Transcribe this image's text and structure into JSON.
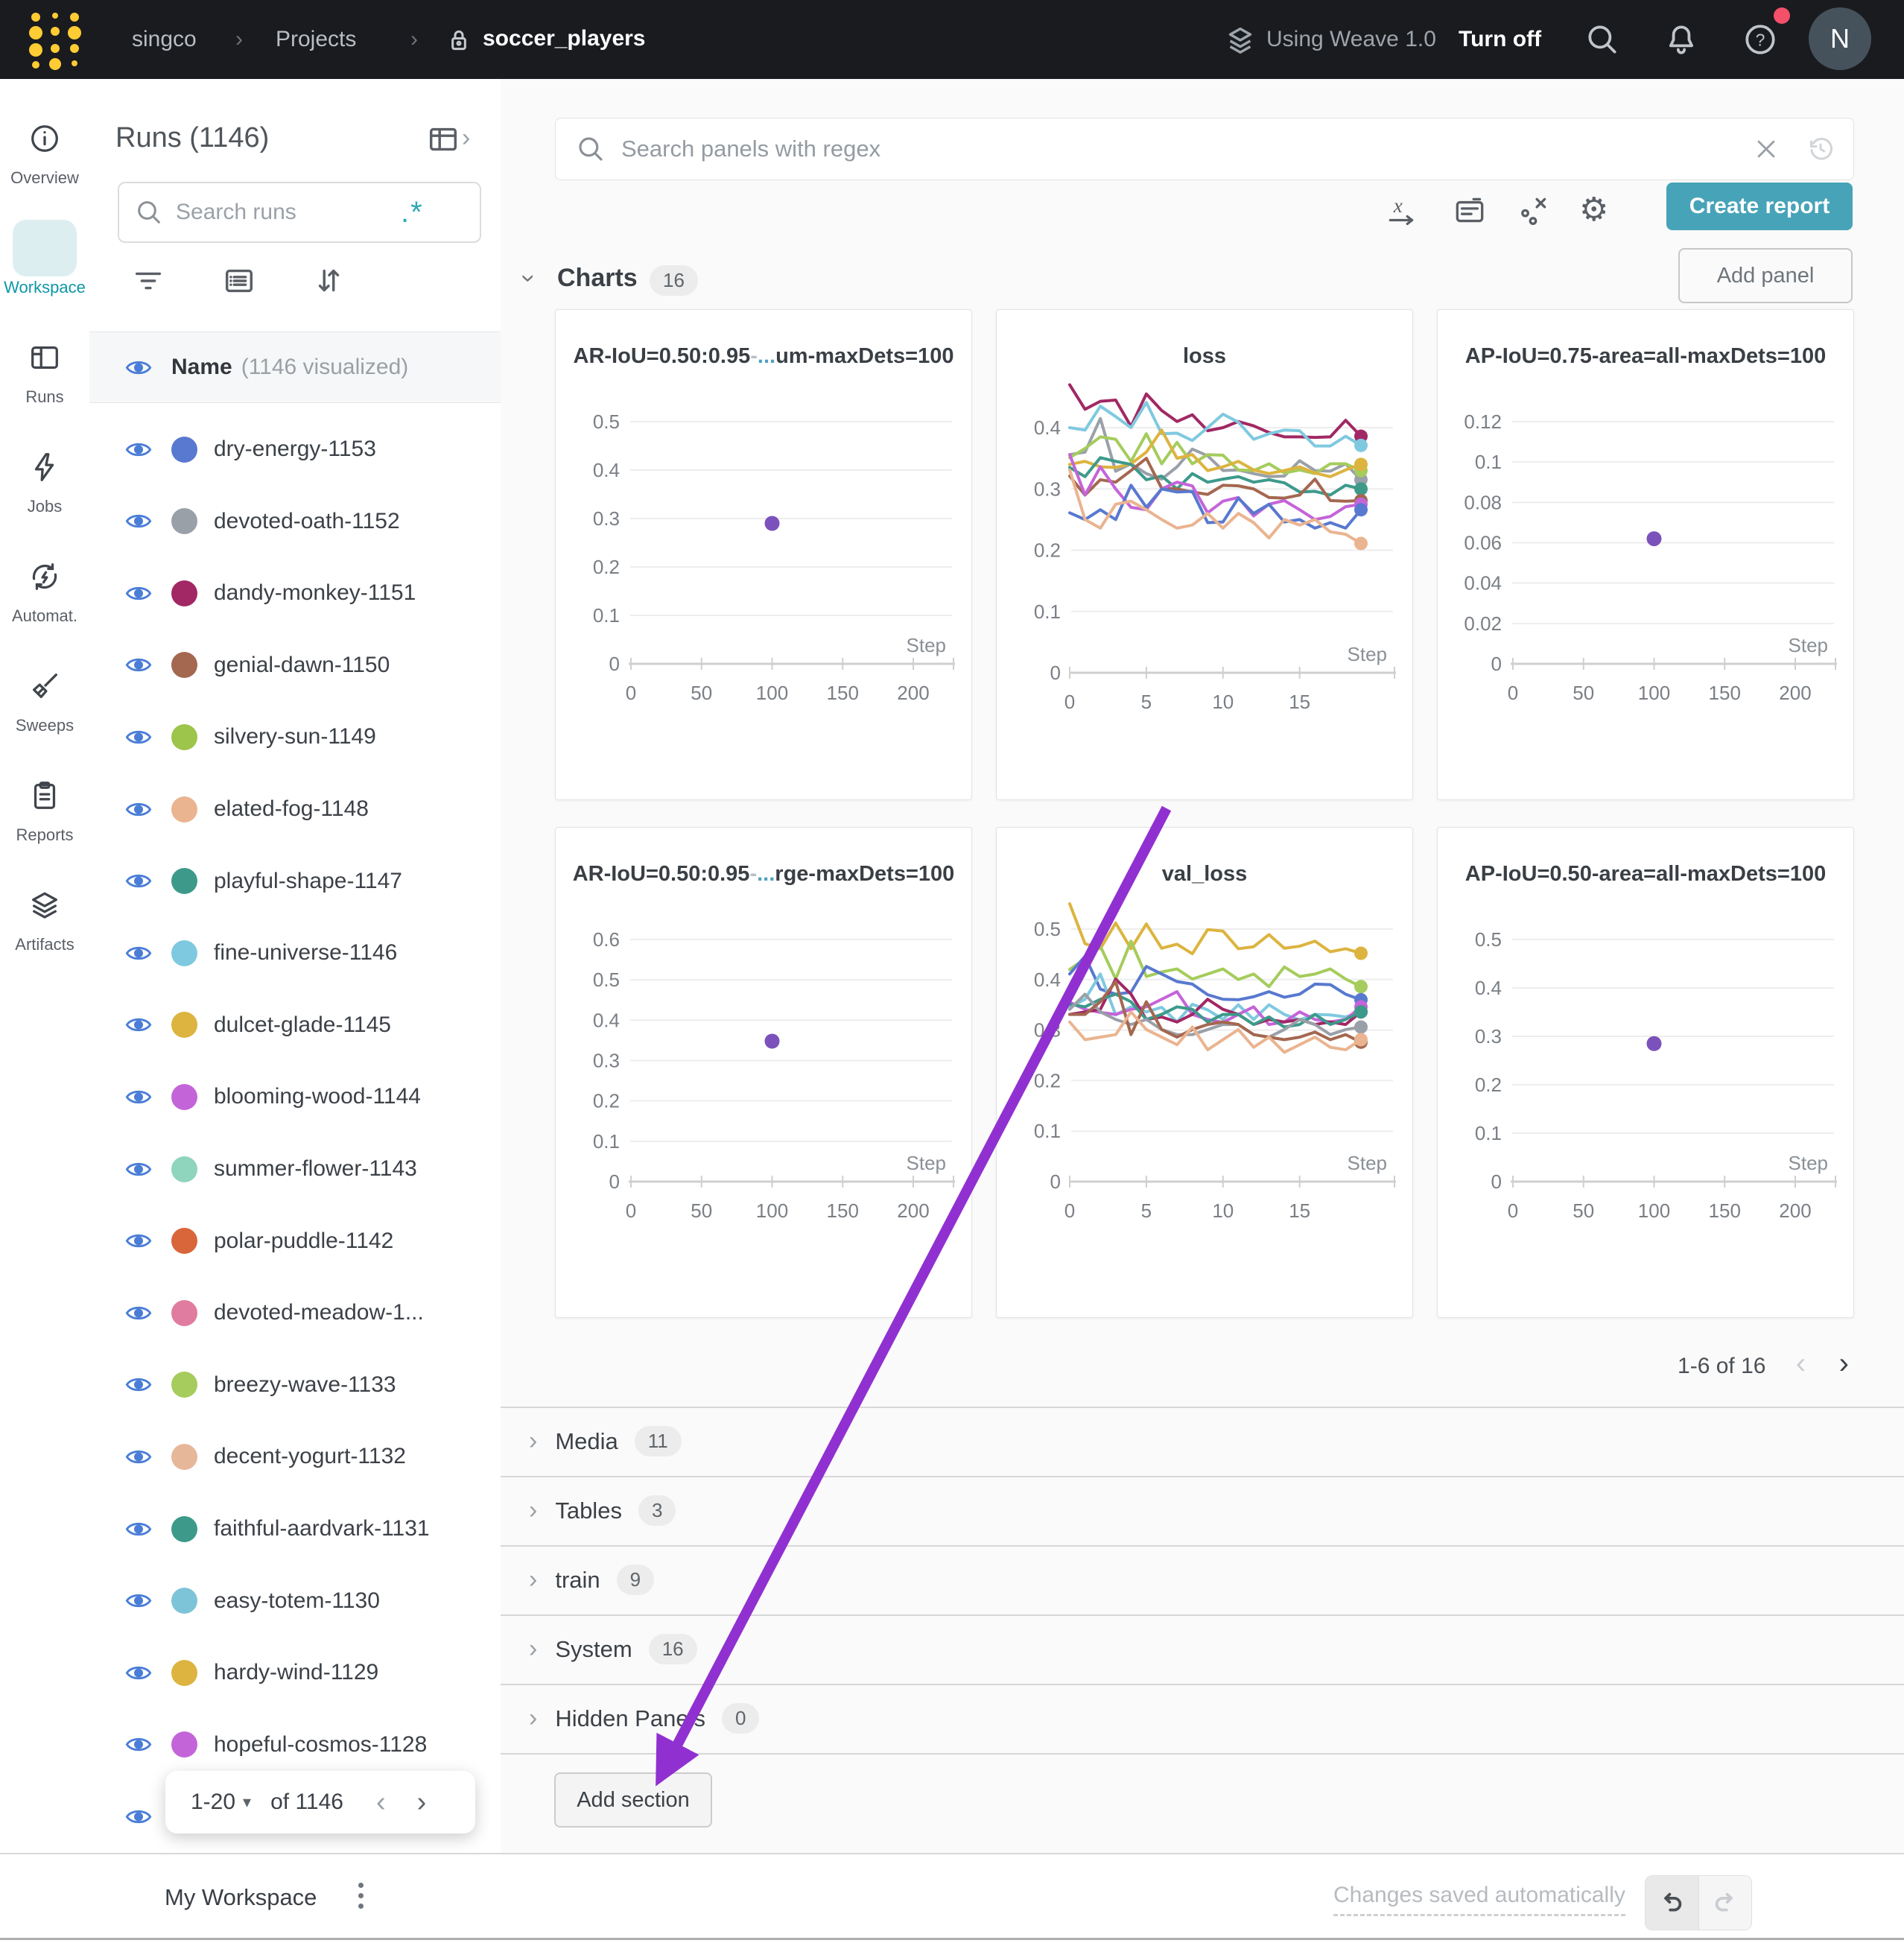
{
  "topbar": {
    "breadcrumb_org": "singco",
    "breadcrumb_section": "Projects",
    "breadcrumb_project": "soccer_players",
    "weave_label": "Using Weave 1.0",
    "turn_off": "Turn off",
    "avatar_initial": "N",
    "logo_color": "#ffcc33",
    "bg_color": "#191b1f"
  },
  "nav": {
    "items": [
      {
        "label": "Overview",
        "icon": "info-icon",
        "active": false
      },
      {
        "label": "Workspace",
        "icon": "workspace-icon",
        "active": true
      },
      {
        "label": "Runs",
        "icon": "table-icon",
        "active": false
      },
      {
        "label": "Jobs",
        "icon": "bolt-icon",
        "active": false
      },
      {
        "label": "Automat.",
        "icon": "automation-icon",
        "active": false
      },
      {
        "label": "Sweeps",
        "icon": "broom-icon",
        "active": false
      },
      {
        "label": "Reports",
        "icon": "report-icon",
        "active": false
      },
      {
        "label": "Artifacts",
        "icon": "layers-icon",
        "active": false
      }
    ],
    "active_color": "#0e97a7"
  },
  "runs_panel": {
    "title": "Runs (1146)",
    "search_placeholder": "Search runs",
    "regex_icon": ".*",
    "header_name": "Name",
    "header_visualized": "(1146 visualized)",
    "runs": [
      {
        "name": "dry-energy-1153",
        "color": "#5879cf"
      },
      {
        "name": "devoted-oath-1152",
        "color": "#9aa0a8"
      },
      {
        "name": "dandy-monkey-1151",
        "color": "#a12864"
      },
      {
        "name": "genial-dawn-1150",
        "color": "#a46750"
      },
      {
        "name": "silvery-sun-1149",
        "color": "#9dc44b"
      },
      {
        "name": "elated-fog-1148",
        "color": "#eab490"
      },
      {
        "name": "playful-shape-1147",
        "color": "#3d9a8b"
      },
      {
        "name": "fine-universe-1146",
        "color": "#7fc9e0"
      },
      {
        "name": "dulcet-glade-1145",
        "color": "#dcb43f"
      },
      {
        "name": "blooming-wood-1144",
        "color": "#c464d9"
      },
      {
        "name": "summer-flower-1143",
        "color": "#8fd4bc"
      },
      {
        "name": "polar-puddle-1142",
        "color": "#d9653b"
      },
      {
        "name": "devoted-meadow-1...",
        "color": "#e07c9f"
      },
      {
        "name": "breezy-wave-1133",
        "color": "#a5cc5c"
      },
      {
        "name": "decent-yogurt-1132",
        "color": "#e7b79a"
      },
      {
        "name": "faithful-aardvark-1131",
        "color": "#3d9a8b"
      },
      {
        "name": "easy-totem-1130",
        "color": "#7ec4d8"
      },
      {
        "name": "hardy-wind-1129",
        "color": "#dcb43f"
      },
      {
        "name": "hopeful-cosmos-1128",
        "color": "#c464d9"
      },
      {
        "name": "",
        "color": ""
      }
    ],
    "pagination": {
      "range": "1-20",
      "of": "of 1146"
    }
  },
  "main": {
    "search_placeholder": "Search panels with regex",
    "create_report": "Create report",
    "charts_header": {
      "label": "Charts",
      "count": "16"
    },
    "add_panel": "Add panel",
    "charts_pagination": "1-6 of 16",
    "collapsed_sections": [
      {
        "label": "Media",
        "count": "11"
      },
      {
        "label": "Tables",
        "count": "3"
      },
      {
        "label": "train",
        "count": "9"
      },
      {
        "label": "System",
        "count": "16"
      },
      {
        "label": "Hidden Panels",
        "count": "0"
      }
    ],
    "add_section": "Add section"
  },
  "footer": {
    "workspace": "My Workspace",
    "saved": "Changes saved automatically"
  },
  "colors": {
    "accent_teal": "#47a3b8",
    "arrow_purple": "#9130d1",
    "eye_blue": "#4a7dd6",
    "scatter_point": "#7b52bb"
  },
  "chart_data": [
    {
      "type": "scatter",
      "title_parts": [
        {
          "text": "AR-IoU=0.50:0.95",
          "style": "normal"
        },
        {
          "text": "-",
          "style": "dim"
        },
        {
          "text": "...",
          "style": "teal"
        },
        {
          "text": "um-maxDets=100",
          "style": "normal"
        }
      ],
      "xlabel": "Step",
      "x_ticks": [
        0,
        50,
        100,
        150,
        200
      ],
      "x_max": 200,
      "y_ticks": [
        0.5,
        0.4,
        0.3,
        0.2,
        0.1,
        0
      ],
      "ylim": [
        0,
        0.5
      ],
      "grid": true,
      "axis_y": 475,
      "top_tick_y": 150,
      "point_color": "#7b52bb",
      "points": [
        {
          "x": 100,
          "y": 0.29
        }
      ]
    },
    {
      "type": "line",
      "title_parts": [
        {
          "text": "loss",
          "style": "normal"
        }
      ],
      "xlabel": "Step",
      "x_ticks": [
        0,
        5,
        10,
        15
      ],
      "x_max": 19,
      "y_ticks": [
        0.4,
        0.3,
        0.2,
        0.1,
        0
      ],
      "ylim": [
        0,
        0.5
      ],
      "grid": true,
      "axis_y": 487,
      "top_tick_y": 158,
      "series": [
        {
          "name": "maroon",
          "color": "#a12864",
          "values": [
            0.47,
            0.43,
            0.443,
            0.445,
            0.402,
            0.455,
            0.428,
            0.41,
            0.421,
            0.395,
            0.4,
            0.41,
            0.403,
            0.392,
            0.385,
            0.385,
            0.384,
            0.385,
            0.412,
            0.386
          ]
        },
        {
          "name": "cyan",
          "color": "#7fc9e0",
          "values": [
            0.4,
            0.396,
            0.435,
            0.418,
            0.4,
            0.441,
            0.39,
            0.391,
            0.379,
            0.4,
            0.422,
            0.409,
            0.381,
            0.39,
            0.396,
            0.395,
            0.37,
            0.37,
            0.386,
            0.371
          ]
        },
        {
          "name": "gray",
          "color": "#9aa0a8",
          "values": [
            0.356,
            0.36,
            0.415,
            0.329,
            0.341,
            0.325,
            0.316,
            0.336,
            0.365,
            0.354,
            0.33,
            0.331,
            0.325,
            0.32,
            0.321,
            0.346,
            0.33,
            0.329,
            0.341,
            0.315
          ]
        },
        {
          "name": "lime",
          "color": "#a5cc5c",
          "values": [
            0.351,
            0.366,
            0.385,
            0.381,
            0.345,
            0.39,
            0.341,
            0.376,
            0.341,
            0.356,
            0.355,
            0.331,
            0.33,
            0.341,
            0.326,
            0.331,
            0.325,
            0.341,
            0.341,
            0.33
          ]
        },
        {
          "name": "gold",
          "color": "#dcb43f",
          "values": [
            0.34,
            0.345,
            0.336,
            0.335,
            0.341,
            0.36,
            0.396,
            0.35,
            0.356,
            0.33,
            0.336,
            0.345,
            0.331,
            0.325,
            0.33,
            0.336,
            0.326,
            0.32,
            0.331,
            0.34
          ]
        },
        {
          "name": "teal",
          "color": "#3d9a8b",
          "values": [
            0.335,
            0.32,
            0.351,
            0.345,
            0.34,
            0.315,
            0.321,
            0.3,
            0.325,
            0.311,
            0.316,
            0.32,
            0.311,
            0.315,
            0.31,
            0.295,
            0.296,
            0.29,
            0.306,
            0.3
          ]
        },
        {
          "name": "brown",
          "color": "#a46750",
          "values": [
            0.321,
            0.29,
            0.315,
            0.311,
            0.33,
            0.35,
            0.301,
            0.3,
            0.295,
            0.291,
            0.306,
            0.305,
            0.3,
            0.286,
            0.285,
            0.29,
            0.316,
            0.281,
            0.28,
            0.281
          ]
        },
        {
          "name": "orchid",
          "color": "#c464d9",
          "values": [
            0.356,
            0.29,
            0.336,
            0.3,
            0.27,
            0.266,
            0.3,
            0.311,
            0.305,
            0.261,
            0.28,
            0.286,
            0.256,
            0.275,
            0.281,
            0.266,
            0.25,
            0.255,
            0.271,
            0.275
          ]
        },
        {
          "name": "blue",
          "color": "#5879cf",
          "values": [
            0.261,
            0.25,
            0.266,
            0.25,
            0.306,
            0.27,
            0.3,
            0.295,
            0.296,
            0.245,
            0.246,
            0.285,
            0.26,
            0.275,
            0.246,
            0.25,
            0.236,
            0.245,
            0.236,
            0.266
          ]
        },
        {
          "name": "peach",
          "color": "#eab490",
          "values": [
            0.331,
            0.25,
            0.236,
            0.275,
            0.28,
            0.266,
            0.25,
            0.236,
            0.241,
            0.26,
            0.236,
            0.26,
            0.245,
            0.22,
            0.25,
            0.241,
            0.25,
            0.23,
            0.226,
            0.211
          ]
        }
      ]
    },
    {
      "type": "scatter",
      "title_parts": [
        {
          "text": "AP-IoU=0.75-area=all-maxDets=100",
          "style": "normal"
        }
      ],
      "xlabel": "Step",
      "x_ticks": [
        0,
        50,
        100,
        150,
        200
      ],
      "x_max": 200,
      "y_ticks": [
        0.12,
        0.1,
        0.08,
        0.06,
        0.04,
        0.02,
        0
      ],
      "ylim": [
        0,
        0.12
      ],
      "grid": true,
      "axis_y": 475,
      "top_tick_y": 150,
      "point_color": "#7b52bb",
      "points": [
        {
          "x": 100,
          "y": 0.062
        }
      ]
    },
    {
      "type": "scatter",
      "title_parts": [
        {
          "text": "AR-IoU=0.50:0.95",
          "style": "normal"
        },
        {
          "text": "-",
          "style": "dim"
        },
        {
          "text": "...",
          "style": "teal"
        },
        {
          "text": "rge-maxDets=100",
          "style": "normal"
        }
      ],
      "xlabel": "Step",
      "x_ticks": [
        0,
        50,
        100,
        150,
        200
      ],
      "x_max": 200,
      "y_ticks": [
        0.6,
        0.5,
        0.4,
        0.3,
        0.2,
        0.1,
        0
      ],
      "ylim": [
        0,
        0.6
      ],
      "grid": true,
      "axis_y": 475,
      "top_tick_y": 150,
      "point_color": "#7b52bb",
      "points": [
        {
          "x": 100,
          "y": 0.348
        }
      ]
    },
    {
      "type": "line",
      "title_parts": [
        {
          "text": "val_loss",
          "style": "normal"
        }
      ],
      "xlabel": "Step",
      "x_ticks": [
        0,
        5,
        10,
        15
      ],
      "x_max": 19,
      "y_ticks": [
        0.5,
        0.4,
        0.3,
        0.2,
        0.1,
        0
      ],
      "ylim": [
        0,
        0.55
      ],
      "grid": true,
      "axis_y": 475,
      "top_tick_y": 136,
      "series": [
        {
          "name": "gold",
          "color": "#dcb43f",
          "values": [
            0.55,
            0.471,
            0.461,
            0.512,
            0.461,
            0.51,
            0.462,
            0.47,
            0.451,
            0.499,
            0.496,
            0.461,
            0.465,
            0.489,
            0.462,
            0.466,
            0.476,
            0.455,
            0.461,
            0.452
          ]
        },
        {
          "name": "lime",
          "color": "#a5cc5c",
          "values": [
            0.42,
            0.441,
            0.466,
            0.401,
            0.476,
            0.406,
            0.415,
            0.421,
            0.401,
            0.411,
            0.421,
            0.4,
            0.411,
            0.386,
            0.425,
            0.406,
            0.411,
            0.421,
            0.401,
            0.386
          ]
        },
        {
          "name": "blue",
          "color": "#5879cf",
          "values": [
            0.411,
            0.446,
            0.381,
            0.371,
            0.375,
            0.426,
            0.411,
            0.396,
            0.391,
            0.37,
            0.361,
            0.36,
            0.366,
            0.376,
            0.365,
            0.371,
            0.391,
            0.39,
            0.371,
            0.36
          ]
        },
        {
          "name": "cyan",
          "color": "#7fc9e0",
          "values": [
            0.345,
            0.361,
            0.411,
            0.33,
            0.346,
            0.336,
            0.345,
            0.316,
            0.351,
            0.34,
            0.321,
            0.35,
            0.321,
            0.35,
            0.331,
            0.32,
            0.331,
            0.33,
            0.326,
            0.336
          ]
        },
        {
          "name": "orchid",
          "color": "#c464d9",
          "values": [
            0.355,
            0.341,
            0.335,
            0.331,
            0.341,
            0.346,
            0.361,
            0.376,
            0.331,
            0.321,
            0.315,
            0.331,
            0.346,
            0.311,
            0.316,
            0.336,
            0.321,
            0.316,
            0.321,
            0.346
          ]
        },
        {
          "name": "maroon",
          "color": "#a12864",
          "values": [
            0.331,
            0.336,
            0.341,
            0.401,
            0.371,
            0.321,
            0.326,
            0.316,
            0.331,
            0.361,
            0.341,
            0.331,
            0.311,
            0.321,
            0.316,
            0.321,
            0.311,
            0.316,
            0.311,
            0.336
          ]
        },
        {
          "name": "teal",
          "color": "#3d9a8b",
          "values": [
            0.351,
            0.346,
            0.361,
            0.371,
            0.356,
            0.321,
            0.331,
            0.346,
            0.341,
            0.316,
            0.331,
            0.331,
            0.311,
            0.326,
            0.306,
            0.311,
            0.331,
            0.311,
            0.321,
            0.336
          ]
        },
        {
          "name": "gray",
          "color": "#9aa0a8",
          "values": [
            0.341,
            0.371,
            0.336,
            0.321,
            0.311,
            0.321,
            0.301,
            0.291,
            0.291,
            0.301,
            0.311,
            0.311,
            0.291,
            0.286,
            0.301,
            0.321,
            0.311,
            0.291,
            0.301,
            0.306
          ]
        },
        {
          "name": "brown",
          "color": "#a46750",
          "values": [
            0.331,
            0.331,
            0.356,
            0.396,
            0.291,
            0.356,
            0.301,
            0.286,
            0.301,
            0.311,
            0.316,
            0.311,
            0.291,
            0.286,
            0.281,
            0.286,
            0.296,
            0.281,
            0.291,
            0.276
          ]
        },
        {
          "name": "peach",
          "color": "#eab490",
          "values": [
            0.316,
            0.281,
            0.286,
            0.291,
            0.336,
            0.301,
            0.286,
            0.271,
            0.306,
            0.261,
            0.281,
            0.301,
            0.266,
            0.286,
            0.256,
            0.271,
            0.286,
            0.266,
            0.261,
            0.281
          ]
        }
      ]
    },
    {
      "type": "scatter",
      "title_parts": [
        {
          "text": "AP-IoU=0.50-area=all-maxDets=100",
          "style": "normal"
        }
      ],
      "xlabel": "Step",
      "x_ticks": [
        0,
        50,
        100,
        150,
        200
      ],
      "x_max": 200,
      "y_ticks": [
        0.5,
        0.4,
        0.3,
        0.2,
        0.1,
        0
      ],
      "ylim": [
        0,
        0.5
      ],
      "grid": true,
      "axis_y": 475,
      "top_tick_y": 150,
      "point_color": "#7b52bb",
      "points": [
        {
          "x": 100,
          "y": 0.285
        }
      ]
    }
  ]
}
